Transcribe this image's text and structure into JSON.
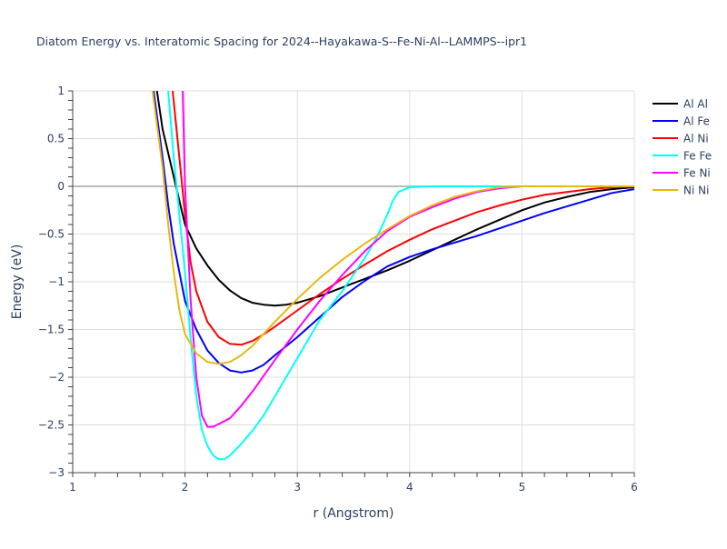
{
  "chart_data": {
    "type": "line",
    "title": "Diatom Energy vs. Interatomic Spacing for 2024--Hayakawa-S--Fe-Ni-Al--LAMMPS--ipr1",
    "xlabel": "r (Angstrom)",
    "ylabel": "Energy (eV)",
    "xlim": [
      1,
      6
    ],
    "ylim": [
      -3,
      1
    ],
    "xticks": [
      "1",
      "2",
      "3",
      "4",
      "5",
      "6"
    ],
    "yticks": [
      "1",
      "0.5",
      "0",
      "−0.5",
      "−1",
      "−1.5",
      "−2",
      "−2.5",
      "−3"
    ],
    "grid": true,
    "legend_position": "right",
    "series": [
      {
        "name": "Al Al",
        "color": "#000000",
        "x": [
          1.7,
          1.75,
          1.8,
          1.9,
          2.0,
          2.1,
          2.2,
          2.3,
          2.4,
          2.5,
          2.6,
          2.7,
          2.8,
          2.9,
          3.0,
          3.2,
          3.4,
          3.6,
          3.8,
          4.0,
          4.2,
          4.4,
          4.6,
          4.8,
          5.0,
          5.2,
          5.4,
          5.6,
          5.8,
          6.0
        ],
        "y": [
          1.5,
          1.0,
          0.6,
          0.1,
          -0.4,
          -0.65,
          -0.83,
          -0.98,
          -1.09,
          -1.17,
          -1.22,
          -1.24,
          -1.25,
          -1.24,
          -1.22,
          -1.15,
          -1.06,
          -0.97,
          -0.88,
          -0.78,
          -0.67,
          -0.56,
          -0.45,
          -0.35,
          -0.25,
          -0.17,
          -0.11,
          -0.06,
          -0.03,
          -0.01
        ]
      },
      {
        "name": "Al Fe",
        "color": "#0000ff",
        "x": [
          1.68,
          1.72,
          1.8,
          1.85,
          1.9,
          2.0,
          2.1,
          2.2,
          2.3,
          2.4,
          2.5,
          2.6,
          2.7,
          2.8,
          3.0,
          3.2,
          3.4,
          3.6,
          3.8,
          4.0,
          4.2,
          4.4,
          4.6,
          4.8,
          5.0,
          5.2,
          5.4,
          5.6,
          5.8,
          6.0
        ],
        "y": [
          1.5,
          1.0,
          0.3,
          -0.2,
          -0.6,
          -1.2,
          -1.5,
          -1.72,
          -1.85,
          -1.93,
          -1.95,
          -1.93,
          -1.87,
          -1.77,
          -1.58,
          -1.37,
          -1.16,
          -0.99,
          -0.84,
          -0.74,
          -0.66,
          -0.59,
          -0.52,
          -0.44,
          -0.36,
          -0.28,
          -0.21,
          -0.14,
          -0.07,
          -0.03
        ]
      },
      {
        "name": "Al Ni",
        "color": "#ff0000",
        "x": [
          1.87,
          1.89,
          1.95,
          2.0,
          2.05,
          2.1,
          2.2,
          2.3,
          2.4,
          2.5,
          2.6,
          2.7,
          2.8,
          3.0,
          3.2,
          3.4,
          3.6,
          3.8,
          4.0,
          4.2,
          4.4,
          4.6,
          4.8,
          5.0,
          5.2,
          5.4,
          5.6,
          5.8,
          6.0
        ],
        "y": [
          1.5,
          1.0,
          0.3,
          -0.3,
          -0.8,
          -1.1,
          -1.42,
          -1.58,
          -1.65,
          -1.66,
          -1.62,
          -1.55,
          -1.47,
          -1.3,
          -1.13,
          -0.97,
          -0.82,
          -0.68,
          -0.56,
          -0.45,
          -0.36,
          -0.27,
          -0.2,
          -0.14,
          -0.09,
          -0.06,
          -0.03,
          -0.01,
          0.0
        ]
      },
      {
        "name": "Fe Fe",
        "color": "#00ffff",
        "x": [
          1.83,
          1.85,
          1.9,
          1.95,
          2.0,
          2.05,
          2.1,
          2.15,
          2.2,
          2.25,
          2.3,
          2.35,
          2.4,
          2.5,
          2.6,
          2.7,
          2.8,
          3.0,
          3.2,
          3.4,
          3.6,
          3.7,
          3.8,
          3.85,
          3.9,
          4.0,
          4.2,
          5.0,
          6.0
        ],
        "y": [
          1.5,
          1.0,
          0.3,
          -0.3,
          -0.9,
          -1.6,
          -2.2,
          -2.55,
          -2.72,
          -2.82,
          -2.86,
          -2.86,
          -2.82,
          -2.7,
          -2.56,
          -2.4,
          -2.2,
          -1.8,
          -1.4,
          -1.1,
          -0.75,
          -0.55,
          -0.3,
          -0.15,
          -0.06,
          -0.01,
          0.0,
          0.0,
          0.0
        ]
      },
      {
        "name": "Fe Ni",
        "color": "#ff00ff",
        "x": [
          1.975,
          1.98,
          2.0,
          2.05,
          2.1,
          2.15,
          2.2,
          2.25,
          2.3,
          2.4,
          2.5,
          2.6,
          2.8,
          3.0,
          3.2,
          3.4,
          3.6,
          3.8,
          4.0,
          4.2,
          4.4,
          4.6,
          4.8,
          5.0,
          6.0
        ],
        "y": [
          1.5,
          1.0,
          0.0,
          -1.2,
          -2.0,
          -2.4,
          -2.52,
          -2.52,
          -2.49,
          -2.43,
          -2.3,
          -2.15,
          -1.82,
          -1.5,
          -1.2,
          -0.93,
          -0.68,
          -0.47,
          -0.32,
          -0.22,
          -0.13,
          -0.06,
          -0.02,
          0.0,
          0.0
        ]
      },
      {
        "name": "Ni Ni",
        "color": "#e6b90f",
        "x": [
          1.68,
          1.71,
          1.8,
          1.85,
          1.9,
          1.95,
          2.0,
          2.1,
          2.2,
          2.3,
          2.4,
          2.5,
          2.6,
          2.8,
          3.0,
          3.2,
          3.4,
          3.6,
          3.8,
          4.0,
          4.2,
          4.4,
          4.6,
          4.8,
          5.0,
          6.0
        ],
        "y": [
          1.5,
          1.0,
          0.2,
          -0.4,
          -0.9,
          -1.3,
          -1.55,
          -1.75,
          -1.84,
          -1.86,
          -1.84,
          -1.77,
          -1.67,
          -1.42,
          -1.18,
          -0.96,
          -0.77,
          -0.6,
          -0.45,
          -0.31,
          -0.2,
          -0.11,
          -0.05,
          -0.01,
          0.0,
          0.0
        ]
      }
    ]
  }
}
